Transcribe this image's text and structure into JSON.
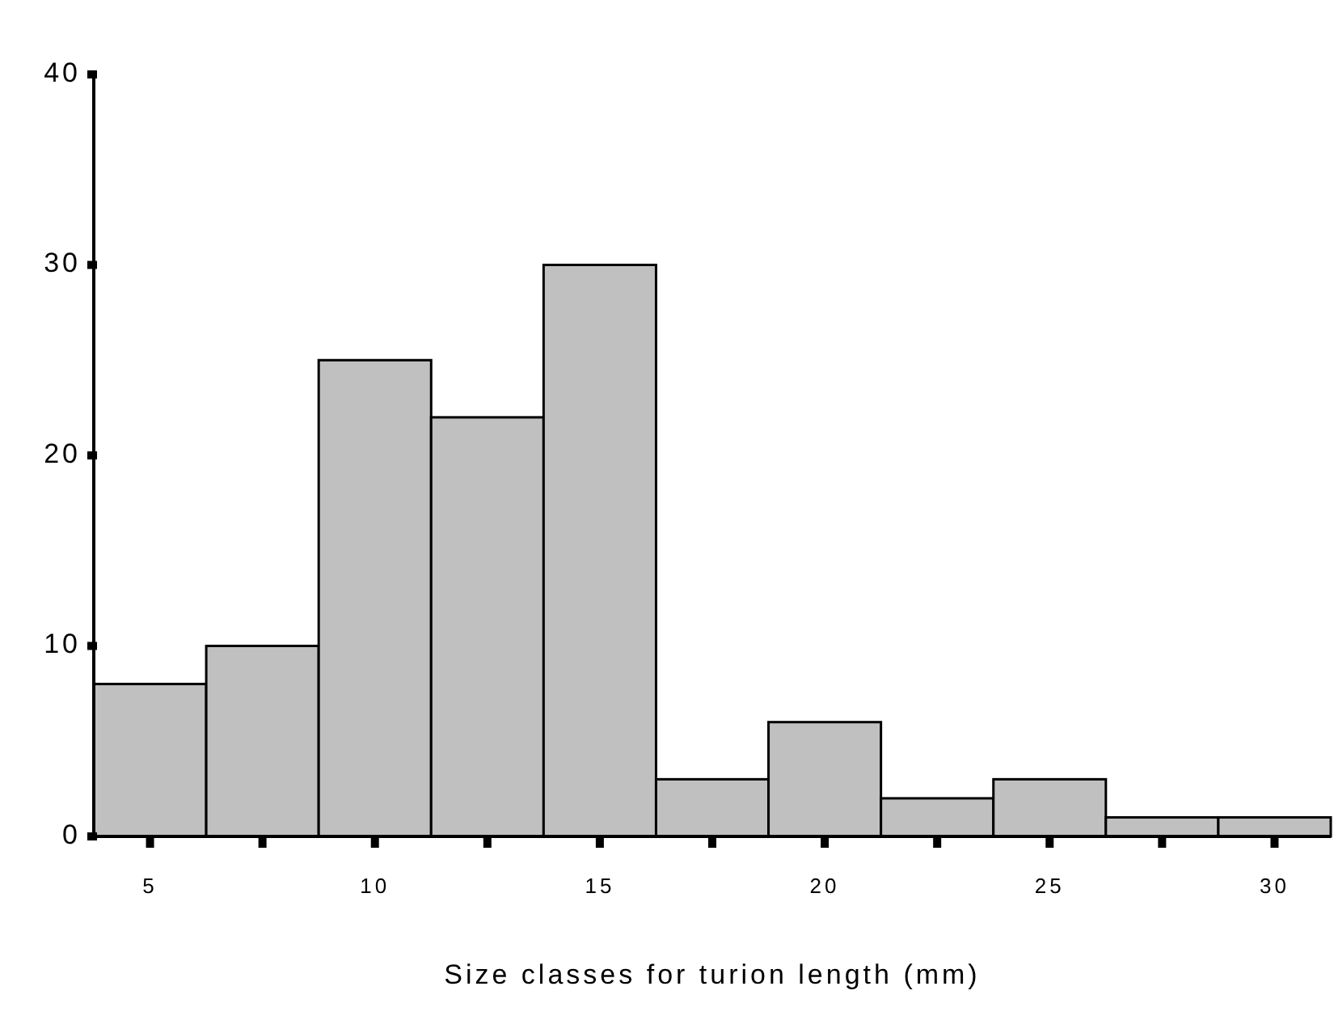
{
  "chart_data": {
    "type": "histogram",
    "xlabel": "Size classes for turion length (mm)",
    "bins": [
      3.75,
      6.25,
      8.75,
      11.25,
      13.75,
      16.25,
      18.75,
      21.25,
      23.75,
      26.25,
      28.75,
      31.25
    ],
    "values": [
      8,
      10,
      25,
      22,
      30,
      3,
      6,
      2,
      3,
      1,
      1
    ],
    "color": "#c0c0c0",
    "xlim": [
      3.75,
      31.25
    ],
    "xticks": [
      5,
      {
        "value": 7.5,
        "label": null
      },
      10,
      {
        "value": 12.5,
        "label": null
      },
      15,
      {
        "value": 17.5,
        "label": null
      },
      20,
      {
        "value": 22.5,
        "label": null
      },
      25,
      {
        "value": 27.5,
        "label": null
      },
      30
    ],
    "ylim": [
      0,
      40
    ],
    "yticks": [
      0,
      10,
      20,
      30,
      40
    ],
    "grid": false
  }
}
